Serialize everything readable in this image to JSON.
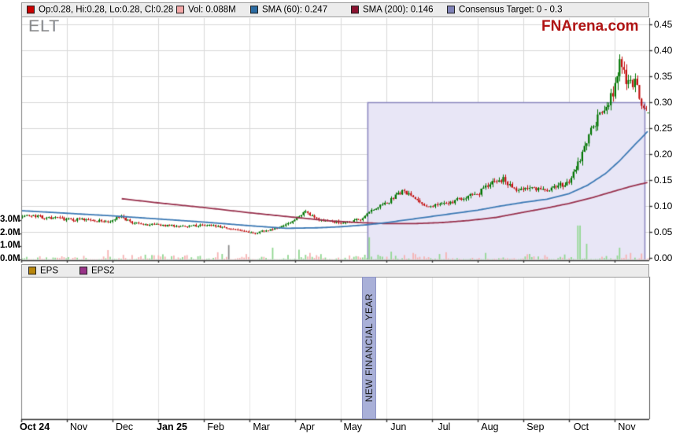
{
  "header": {
    "ticker": "ELT",
    "watermark": "FNArena.com"
  },
  "legend": {
    "items": [
      {
        "swatch": "#cc0000",
        "label": "Op:0.28, Hi:0.28, Lo:0.28, Cl:0.28"
      },
      {
        "swatch": "#f4a7a7",
        "label": "Vol: 0.088M"
      },
      {
        "swatch": "#2b6ca3",
        "label": "SMA (60): 0.247"
      },
      {
        "swatch": "#8b1230",
        "label": "SMA (200): 0.146"
      },
      {
        "swatch": "#8082b8",
        "label": "Consensus Target: 0 - 0.3"
      }
    ]
  },
  "eps_legend": {
    "items": [
      {
        "swatch": "#b8860b",
        "label": "EPS"
      },
      {
        "swatch": "#993388",
        "label": "EPS2"
      }
    ]
  },
  "annotations": {
    "new_financial_year": "NEW FINANCIAL YEAR"
  },
  "axes": {
    "price_ticks": [
      "0.45",
      "0.40",
      "0.35",
      "0.30",
      "0.25",
      "0.20",
      "0.15",
      "0.10",
      "0.05",
      "0.00"
    ],
    "volume_ticks": [
      "3.0M",
      "2.0M",
      "1.0M",
      "0.0M"
    ],
    "months": [
      {
        "label": "Oct 24",
        "bold": true
      },
      {
        "label": "Nov",
        "bold": false
      },
      {
        "label": "Dec",
        "bold": false
      },
      {
        "label": "Jan 25",
        "bold": true
      },
      {
        "label": "Feb",
        "bold": false
      },
      {
        "label": "Mar",
        "bold": false
      },
      {
        "label": "Apr",
        "bold": false
      },
      {
        "label": "May",
        "bold": false
      },
      {
        "label": "Jun",
        "bold": false
      },
      {
        "label": "Jul",
        "bold": false
      },
      {
        "label": "Aug",
        "bold": false
      },
      {
        "label": "Sep",
        "bold": false
      },
      {
        "label": "Oct",
        "bold": false
      },
      {
        "label": "Nov",
        "bold": false
      }
    ]
  },
  "chart_data": {
    "type": "candlestick",
    "title": "ELT daily price with volume, SMA(60), SMA(200) and consensus target band",
    "x_range_months": [
      "Oct 2024",
      "Nov 2025"
    ],
    "price_axis": {
      "min": 0.0,
      "max": 0.45,
      "step": 0.05
    },
    "volume_axis_m": {
      "min": 0.0,
      "max": 3.0,
      "step": 1.0
    },
    "last_bar": {
      "open": 0.28,
      "high": 0.28,
      "low": 0.28,
      "close": 0.28,
      "volume_m": 0.088
    },
    "sma60_last": 0.247,
    "sma200_last": 0.146,
    "consensus_target": {
      "low": 0.0,
      "high": 0.3,
      "band_start_t": 7.58
    },
    "monthly_close_estimates": {
      "Oct 24": 0.08,
      "Nov 24": 0.075,
      "Dec 24": 0.07,
      "Jan 25": 0.063,
      "Feb 25": 0.06,
      "Mar 25": 0.05,
      "Apr 25": 0.08,
      "May 25": 0.07,
      "Jun 25": 0.12,
      "Jul 25": 0.105,
      "Aug 25": 0.14,
      "Sep 25": 0.135,
      "Oct 25": 0.3,
      "Nov 25": 0.28
    },
    "close_keyframes": [
      [
        0,
        0.082
      ],
      [
        0.4,
        0.079
      ],
      [
        0.9,
        0.075
      ],
      [
        1.4,
        0.073
      ],
      [
        1.9,
        0.07
      ],
      [
        2.15,
        0.079
      ],
      [
        2.45,
        0.066
      ],
      [
        3.0,
        0.063
      ],
      [
        3.6,
        0.062
      ],
      [
        4.2,
        0.063
      ],
      [
        4.5,
        0.058
      ],
      [
        4.8,
        0.052
      ],
      [
        5.1,
        0.048
      ],
      [
        5.5,
        0.055
      ],
      [
        5.9,
        0.067
      ],
      [
        6.2,
        0.088
      ],
      [
        6.45,
        0.075
      ],
      [
        6.8,
        0.07
      ],
      [
        7.1,
        0.068
      ],
      [
        7.45,
        0.075
      ],
      [
        7.7,
        0.092
      ],
      [
        8.0,
        0.105
      ],
      [
        8.35,
        0.128
      ],
      [
        8.55,
        0.118
      ],
      [
        8.8,
        0.104
      ],
      [
        9.05,
        0.1
      ],
      [
        9.4,
        0.106
      ],
      [
        9.75,
        0.118
      ],
      [
        10.0,
        0.124
      ],
      [
        10.35,
        0.145
      ],
      [
        10.55,
        0.152
      ],
      [
        10.8,
        0.133
      ],
      [
        11.1,
        0.135
      ],
      [
        11.5,
        0.129
      ],
      [
        11.8,
        0.14
      ],
      [
        12.0,
        0.143
      ],
      [
        12.2,
        0.18
      ],
      [
        12.45,
        0.235
      ],
      [
        12.7,
        0.28
      ],
      [
        12.9,
        0.302
      ],
      [
        13.05,
        0.34
      ],
      [
        13.12,
        0.392
      ],
      [
        13.22,
        0.352
      ],
      [
        13.35,
        0.33
      ],
      [
        13.48,
        0.345
      ],
      [
        13.58,
        0.305
      ],
      [
        13.68,
        0.282
      ],
      [
        13.75,
        0.28
      ]
    ],
    "sma60_keyframes": [
      [
        0,
        0.091
      ],
      [
        1,
        0.086
      ],
      [
        2,
        0.081
      ],
      [
        3,
        0.075
      ],
      [
        4,
        0.069
      ],
      [
        5,
        0.062
      ],
      [
        5.8,
        0.057
      ],
      [
        6.5,
        0.058
      ],
      [
        7,
        0.06
      ],
      [
        7.6,
        0.064
      ],
      [
        8,
        0.068
      ],
      [
        8.5,
        0.074
      ],
      [
        9,
        0.08
      ],
      [
        9.5,
        0.086
      ],
      [
        10,
        0.092
      ],
      [
        10.5,
        0.1
      ],
      [
        11,
        0.107
      ],
      [
        11.5,
        0.113
      ],
      [
        12,
        0.124
      ],
      [
        12.4,
        0.14
      ],
      [
        12.8,
        0.163
      ],
      [
        13.1,
        0.187
      ],
      [
        13.4,
        0.215
      ],
      [
        13.6,
        0.233
      ],
      [
        13.75,
        0.247
      ]
    ],
    "sma200_keyframes": [
      [
        2.2,
        0.114
      ],
      [
        3,
        0.106
      ],
      [
        4,
        0.097
      ],
      [
        5,
        0.087
      ],
      [
        6,
        0.078
      ],
      [
        6.8,
        0.071
      ],
      [
        7.4,
        0.068
      ],
      [
        8,
        0.066
      ],
      [
        8.6,
        0.066
      ],
      [
        9.2,
        0.068
      ],
      [
        9.8,
        0.072
      ],
      [
        10.4,
        0.078
      ],
      [
        11,
        0.088
      ],
      [
        11.5,
        0.096
      ],
      [
        12,
        0.105
      ],
      [
        12.5,
        0.116
      ],
      [
        13,
        0.129
      ],
      [
        13.4,
        0.139
      ],
      [
        13.75,
        0.146
      ]
    ],
    "volume_spikes_m": [
      [
        1.86,
        0.72,
        "down"
      ],
      [
        2.2,
        0.35,
        "down"
      ],
      [
        4.3,
        0.55,
        "down"
      ],
      [
        4.55,
        1.1,
        "flat"
      ],
      [
        5.5,
        0.9,
        "up"
      ],
      [
        6.1,
        0.75,
        "up"
      ],
      [
        6.3,
        0.5,
        "down"
      ],
      [
        7.62,
        1.7,
        "up"
      ],
      [
        8.1,
        0.6,
        "up"
      ],
      [
        8.6,
        0.5,
        "down"
      ],
      [
        9.3,
        0.55,
        "down"
      ],
      [
        10.2,
        0.5,
        "up"
      ],
      [
        11.1,
        0.4,
        "down"
      ],
      [
        12.23,
        2.6,
        "up"
      ],
      [
        12.4,
        1.2,
        "up"
      ],
      [
        13.1,
        0.9,
        "up"
      ],
      [
        13.35,
        0.5,
        "down"
      ],
      [
        13.6,
        0.45,
        "down"
      ]
    ],
    "bars": 286,
    "t_end": 13.75,
    "seed": 7
  },
  "colors": {
    "candle_up": "#007500",
    "candle_down": "#c41111",
    "vol_up": "#93d893",
    "vol_down": "#f6b3b3",
    "vol_flat": "#8c8c8c",
    "sma60": "#3d7ab5",
    "sma200": "#99324e",
    "band_fill": "#e8e6f6",
    "band_border": "#8c89c0",
    "grid": "#d9d9d9",
    "grid_light": "#e6e6e6",
    "axis_dark": "#333333",
    "axis_gray": "#808080"
  }
}
